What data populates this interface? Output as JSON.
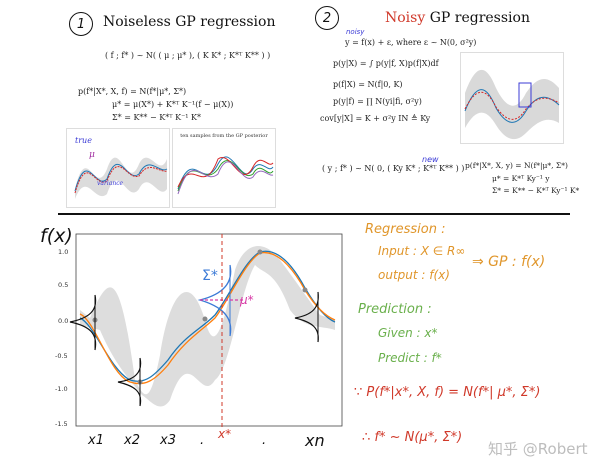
{
  "top_left": {
    "circle_num": "1",
    "title": "Noiseless GP regression",
    "joint": "( f ; f* ) ~ N( ( μ ; μ* ), ( K  K* ; K*ᵀ  K** ) )",
    "eq1": "p(f*|X*, X, f) = N(f*|μ*, Σ*)",
    "eq2": "μ* = μ(X*) + K*ᵀ K⁻¹(f − μ(X))",
    "eq3": "Σ* = K** − K*ᵀ K⁻¹ K*",
    "thumb2_title": "ten samples from the GP posterior",
    "annot_true": "true",
    "annot_mu": "μ",
    "annot_var": "variance"
  },
  "top_right": {
    "circle_num": "2",
    "title_noisy": "Noisy",
    "title_rest": " GP regression",
    "noisy_tag": "noisy",
    "eq1": "y = f(x) + ε,  where  ε ~ N(0, σ²y)",
    "eq2": "p(y|X) = ∫ p(y|f, X)p(f|X)df",
    "eq3": "p(f|X) = N(f|0, K)",
    "eq4": "p(y|f) = ∏ N(yi|fi, σ²y)",
    "eq5": "cov[y|X] = K + σ²y IN ≜ Ky",
    "joint": "( y ; f* ) ~ N( 0, ( Ky  K* ; K*ᵀ  K** ) )",
    "eq6": "p(f*|X*, X, y) = N(f*|μ*, Σ*)",
    "eq7": "μ* = K*ᵀ Ky⁻¹ y",
    "eq8": "Σ* = K** − K*ᵀ Ky⁻¹ K*",
    "new_tag": "new"
  },
  "main_plot": {
    "fx_label": "f(x)",
    "yticks": [
      "1.0",
      "0.5",
      "0.0",
      "-0.5",
      "-1.0",
      "-1.5"
    ],
    "xlabels": [
      "x1",
      "x2",
      "x3",
      ".",
      ".",
      "xn"
    ],
    "xstar_label": "x*",
    "sigma_label": "Σ*",
    "mu_label": "μ*",
    "colors": {
      "true": "#1f77b4",
      "mean": "#ff7f0e",
      "band": "#d9d9d9"
    }
  },
  "notes": {
    "regression": "Regression :",
    "input": "Input : X ∈ R∞",
    "output": "output : f(x)",
    "arrow_gp": "⇒  GP : f(x)",
    "prediction": "Prediction :",
    "given": "Given : x*",
    "predict": "Predict : f*",
    "bayes": "∵ P(f*|x*, X, f) = N(f*| μ*, Σ*)",
    "result": "∴ f* ~ N(μ*, Σ*)"
  },
  "watermark": "知乎 @Robert"
}
